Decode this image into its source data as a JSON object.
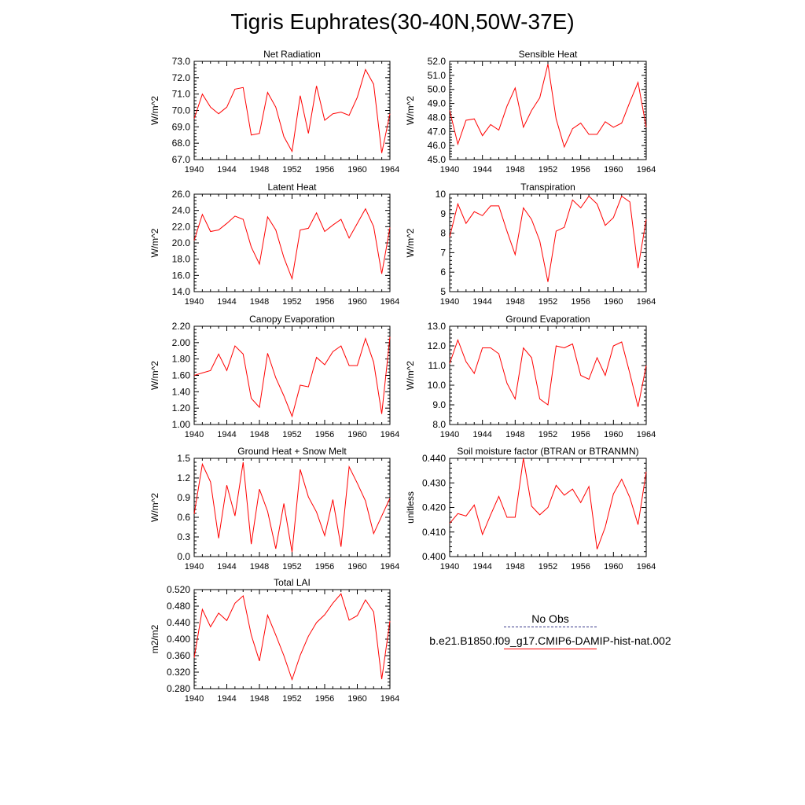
{
  "figure": {
    "title": "Tigris Euphrates(30-40N,50W-37E)"
  },
  "legend": {
    "items": [
      {
        "label": "No Obs",
        "style": "dashed",
        "color": "#3a3a8a"
      },
      {
        "label": "b.e21.B1850.f09_g17.CMIP6-DAMIP-hist-nat.002",
        "style": "solid",
        "color": "#ff0000"
      }
    ]
  },
  "chart_data": [
    {
      "type": "line",
      "title": "Net Radiation",
      "ylabel": "W/m^2",
      "ylim": [
        67.0,
        73.0
      ],
      "yticks": [
        "67.0",
        "68.0",
        "69.0",
        "70.0",
        "71.0",
        "72.0",
        "73.0"
      ],
      "x": [
        1940,
        1941,
        1942,
        1943,
        1944,
        1945,
        1946,
        1947,
        1948,
        1949,
        1950,
        1951,
        1952,
        1953,
        1954,
        1955,
        1956,
        1957,
        1958,
        1959,
        1960,
        1961,
        1962,
        1963,
        1964
      ],
      "series": [
        {
          "color": "#ff0000",
          "values": [
            69.5,
            71.0,
            70.2,
            69.8,
            70.2,
            71.3,
            71.4,
            68.5,
            68.6,
            71.1,
            70.2,
            68.4,
            67.5,
            70.9,
            68.6,
            71.5,
            69.4,
            69.8,
            69.9,
            69.7,
            70.8,
            72.5,
            71.6,
            67.4,
            69.8
          ]
        }
      ],
      "xlim": [
        1940,
        1964
      ],
      "xticks": [
        "1940",
        "1944",
        "1948",
        "1952",
        "1956",
        "1960",
        "1964"
      ]
    },
    {
      "type": "line",
      "title": "Sensible Heat",
      "ylabel": "W/m^2",
      "ylim": [
        45.0,
        52.0
      ],
      "yticks": [
        "45.0",
        "46.0",
        "47.0",
        "48.0",
        "49.0",
        "50.0",
        "51.0",
        "52.0"
      ],
      "x": [
        1940,
        1941,
        1942,
        1943,
        1944,
        1945,
        1946,
        1947,
        1948,
        1949,
        1950,
        1951,
        1952,
        1953,
        1954,
        1955,
        1956,
        1957,
        1958,
        1959,
        1960,
        1961,
        1962,
        1963,
        1964
      ],
      "series": [
        {
          "color": "#ff0000",
          "values": [
            48.5,
            46.1,
            47.8,
            47.9,
            46.7,
            47.5,
            47.1,
            48.8,
            50.1,
            47.3,
            48.5,
            49.4,
            51.8,
            47.9,
            45.9,
            47.2,
            47.6,
            46.8,
            46.8,
            47.7,
            47.3,
            47.6,
            49.1,
            50.5,
            47.3
          ]
        }
      ],
      "xlim": [
        1940,
        1964
      ],
      "xticks": [
        "1940",
        "1944",
        "1948",
        "1952",
        "1956",
        "1960",
        "1964"
      ]
    },
    {
      "type": "line",
      "title": "Latent Heat",
      "ylabel": "W/m^2",
      "ylim": [
        14.0,
        26.0
      ],
      "yticks": [
        "14.0",
        "16.0",
        "18.0",
        "20.0",
        "22.0",
        "24.0",
        "26.0"
      ],
      "x": [
        1940,
        1941,
        1942,
        1943,
        1944,
        1945,
        1946,
        1947,
        1948,
        1949,
        1950,
        1951,
        1952,
        1953,
        1954,
        1955,
        1956,
        1957,
        1958,
        1959,
        1960,
        1961,
        1962,
        1963,
        1964
      ],
      "series": [
        {
          "color": "#ff0000",
          "values": [
            20.3,
            23.5,
            21.4,
            21.6,
            22.4,
            23.3,
            22.9,
            19.5,
            17.4,
            23.2,
            21.6,
            18.2,
            15.6,
            21.6,
            21.8,
            23.7,
            21.4,
            22.2,
            22.9,
            20.6,
            22.4,
            24.2,
            22.0,
            16.2,
            21.9
          ]
        }
      ],
      "xlim": [
        1940,
        1964
      ],
      "xticks": [
        "1940",
        "1944",
        "1948",
        "1952",
        "1956",
        "1960",
        "1964"
      ]
    },
    {
      "type": "line",
      "title": "Transpiration",
      "ylabel": "W/m^2",
      "ylim": [
        5,
        10
      ],
      "yticks": [
        "5",
        "6",
        "7",
        "8",
        "9",
        "10"
      ],
      "x": [
        1940,
        1941,
        1942,
        1943,
        1944,
        1945,
        1946,
        1947,
        1948,
        1949,
        1950,
        1951,
        1952,
        1953,
        1954,
        1955,
        1956,
        1957,
        1958,
        1959,
        1960,
        1961,
        1962,
        1963,
        1964
      ],
      "series": [
        {
          "color": "#ff0000",
          "values": [
            7.8,
            9.5,
            8.5,
            9.1,
            8.9,
            9.4,
            9.4,
            8.1,
            6.9,
            9.3,
            8.7,
            7.6,
            5.5,
            8.1,
            8.3,
            9.7,
            9.3,
            9.9,
            9.5,
            8.4,
            8.8,
            9.9,
            9.6,
            6.2,
            8.7
          ]
        }
      ],
      "xlim": [
        1940,
        1964
      ],
      "xticks": [
        "1940",
        "1944",
        "1948",
        "1952",
        "1956",
        "1960",
        "1964"
      ]
    },
    {
      "type": "line",
      "title": "Canopy Evaporation",
      "ylabel": "W/m^2",
      "ylim": [
        1.0,
        2.2
      ],
      "yticks": [
        "1.00",
        "1.20",
        "1.40",
        "1.60",
        "1.80",
        "2.00",
        "2.20"
      ],
      "x": [
        1940,
        1941,
        1942,
        1943,
        1944,
        1945,
        1946,
        1947,
        1948,
        1949,
        1950,
        1951,
        1952,
        1953,
        1954,
        1955,
        1956,
        1957,
        1958,
        1959,
        1960,
        1961,
        1962,
        1963,
        1964
      ],
      "series": [
        {
          "color": "#ff0000",
          "values": [
            1.6,
            1.63,
            1.66,
            1.86,
            1.66,
            1.96,
            1.86,
            1.32,
            1.21,
            1.87,
            1.57,
            1.35,
            1.1,
            1.48,
            1.46,
            1.82,
            1.73,
            1.89,
            1.96,
            1.72,
            1.72,
            2.05,
            1.76,
            1.13,
            2.07
          ]
        }
      ],
      "xlim": [
        1940,
        1964
      ],
      "xticks": [
        "1940",
        "1944",
        "1948",
        "1952",
        "1956",
        "1960",
        "1964"
      ]
    },
    {
      "type": "line",
      "title": "Ground Evaporation",
      "ylabel": "W/m^2",
      "ylim": [
        8.0,
        13.0
      ],
      "yticks": [
        "8.0",
        "9.0",
        "10.0",
        "11.0",
        "12.0",
        "13.0"
      ],
      "x": [
        1940,
        1941,
        1942,
        1943,
        1944,
        1945,
        1946,
        1947,
        1948,
        1949,
        1950,
        1951,
        1952,
        1953,
        1954,
        1955,
        1956,
        1957,
        1958,
        1959,
        1960,
        1961,
        1962,
        1963,
        1964
      ],
      "series": [
        {
          "color": "#ff0000",
          "values": [
            11.1,
            12.3,
            11.2,
            10.6,
            11.9,
            11.9,
            11.6,
            10.1,
            9.3,
            11.9,
            11.4,
            9.3,
            9.0,
            12.0,
            11.9,
            12.1,
            10.5,
            10.3,
            11.4,
            10.5,
            12.0,
            12.2,
            10.6,
            8.9,
            11.0
          ]
        }
      ],
      "xlim": [
        1940,
        1964
      ],
      "xticks": [
        "1940",
        "1944",
        "1948",
        "1952",
        "1956",
        "1960",
        "1964"
      ]
    },
    {
      "type": "line",
      "title": "Ground Heat + Snow Melt",
      "ylabel": "W/m^2",
      "ylim": [
        0.0,
        1.5
      ],
      "yticks": [
        "0.0",
        "0.3",
        "0.6",
        "0.9",
        "1.2",
        "1.5"
      ],
      "x": [
        1940,
        1941,
        1942,
        1943,
        1944,
        1945,
        1946,
        1947,
        1948,
        1949,
        1950,
        1951,
        1952,
        1953,
        1954,
        1955,
        1956,
        1957,
        1958,
        1959,
        1960,
        1961,
        1962,
        1963,
        1964
      ],
      "series": [
        {
          "color": "#ff0000",
          "values": [
            0.65,
            1.41,
            1.14,
            0.28,
            1.09,
            0.62,
            1.44,
            0.19,
            1.03,
            0.69,
            0.12,
            0.81,
            0.07,
            1.33,
            0.91,
            0.68,
            0.32,
            0.87,
            0.15,
            1.37,
            1.12,
            0.85,
            0.35,
            0.62,
            0.89
          ]
        }
      ],
      "xlim": [
        1940,
        1964
      ],
      "xticks": [
        "1940",
        "1944",
        "1948",
        "1952",
        "1956",
        "1960",
        "1964"
      ]
    },
    {
      "type": "line",
      "title": "Soil moisture factor (BTRAN or BTRANMN)",
      "ylabel": "unitless",
      "ylim": [
        0.4,
        0.44
      ],
      "yticks": [
        "0.400",
        "0.410",
        "0.420",
        "0.430",
        "0.440"
      ],
      "x": [
        1940,
        1941,
        1942,
        1943,
        1944,
        1945,
        1946,
        1947,
        1948,
        1949,
        1950,
        1951,
        1952,
        1953,
        1954,
        1955,
        1956,
        1957,
        1958,
        1959,
        1960,
        1961,
        1962,
        1963,
        1964
      ],
      "series": [
        {
          "color": "#ff0000",
          "values": [
            0.4135,
            0.4175,
            0.4165,
            0.421,
            0.409,
            0.417,
            0.4245,
            0.416,
            0.416,
            0.44,
            0.4205,
            0.417,
            0.42,
            0.429,
            0.425,
            0.4275,
            0.422,
            0.4285,
            0.403,
            0.412,
            0.4255,
            0.4315,
            0.424,
            0.413,
            0.4345
          ]
        }
      ],
      "xlim": [
        1940,
        1964
      ],
      "xticks": [
        "1940",
        "1944",
        "1948",
        "1952",
        "1956",
        "1960",
        "1964"
      ]
    },
    {
      "type": "line",
      "title": "Total LAI",
      "ylabel": "m2/m2",
      "ylim": [
        0.28,
        0.52
      ],
      "yticks": [
        "0.280",
        "0.320",
        "0.360",
        "0.400",
        "0.440",
        "0.480",
        "0.520"
      ],
      "x": [
        1940,
        1941,
        1942,
        1943,
        1944,
        1945,
        1946,
        1947,
        1948,
        1949,
        1950,
        1951,
        1952,
        1953,
        1954,
        1955,
        1956,
        1957,
        1958,
        1959,
        1960,
        1961,
        1962,
        1963,
        1964
      ],
      "series": [
        {
          "color": "#ff0000",
          "values": [
            0.355,
            0.472,
            0.43,
            0.463,
            0.445,
            0.487,
            0.505,
            0.41,
            0.347,
            0.458,
            0.41,
            0.36,
            0.302,
            0.361,
            0.407,
            0.44,
            0.459,
            0.487,
            0.51,
            0.446,
            0.457,
            0.495,
            0.466,
            0.303,
            0.444
          ]
        }
      ],
      "xlim": [
        1940,
        1964
      ],
      "xticks": [
        "1940",
        "1944",
        "1948",
        "1952",
        "1956",
        "1960",
        "1964"
      ]
    }
  ]
}
